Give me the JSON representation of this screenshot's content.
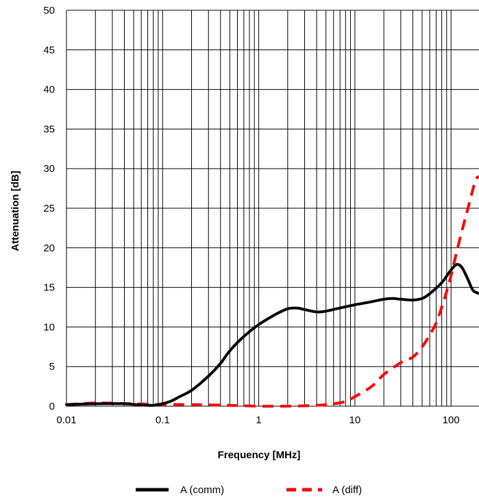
{
  "chart_data": {
    "type": "line",
    "xlabel": "Frequency [MHz]",
    "ylabel": "Attenuation [dB]",
    "x_scale": "log",
    "xlim": [
      0.01,
      200
    ],
    "ylim": [
      0,
      50
    ],
    "x_ticks": [
      "0.01",
      "0.1",
      "1",
      "10",
      "100"
    ],
    "y_ticks": [
      "0",
      "5",
      "10",
      "15",
      "20",
      "25",
      "30",
      "35",
      "40",
      "45",
      "50"
    ],
    "grid": true,
    "legend_position": "bottom",
    "series": [
      {
        "name": "A (comm)",
        "color": "#000000",
        "style": "solid",
        "points": [
          [
            0.01,
            0.2
          ],
          [
            0.02,
            0.3
          ],
          [
            0.04,
            0.3
          ],
          [
            0.07,
            0.1
          ],
          [
            0.09,
            0.2
          ],
          [
            0.12,
            0.6
          ],
          [
            0.15,
            1.2
          ],
          [
            0.2,
            2.0
          ],
          [
            0.3,
            3.8
          ],
          [
            0.4,
            5.4
          ],
          [
            0.5,
            7.0
          ],
          [
            0.7,
            8.8
          ],
          [
            1.0,
            10.3
          ],
          [
            1.5,
            11.6
          ],
          [
            2.0,
            12.3
          ],
          [
            2.5,
            12.4
          ],
          [
            3.0,
            12.2
          ],
          [
            4.0,
            11.9
          ],
          [
            5.0,
            12.0
          ],
          [
            7.0,
            12.4
          ],
          [
            10.0,
            12.8
          ],
          [
            15.0,
            13.2
          ],
          [
            20.0,
            13.5
          ],
          [
            25.0,
            13.6
          ],
          [
            30.0,
            13.5
          ],
          [
            40.0,
            13.4
          ],
          [
            50.0,
            13.6
          ],
          [
            60.0,
            14.2
          ],
          [
            80.0,
            15.6
          ],
          [
            100.0,
            17.2
          ],
          [
            115.0,
            17.9
          ],
          [
            130.0,
            17.5
          ],
          [
            150.0,
            16.0
          ],
          [
            170.0,
            14.6
          ],
          [
            200.0,
            14.2
          ]
        ]
      },
      {
        "name": "A (diff)",
        "color": "#ff0000",
        "style": "dashed",
        "points": [
          [
            0.01,
            0.2
          ],
          [
            0.02,
            0.4
          ],
          [
            0.05,
            0.3
          ],
          [
            0.1,
            0.2
          ],
          [
            0.2,
            0.2
          ],
          [
            0.5,
            0.1
          ],
          [
            1.0,
            0.0
          ],
          [
            2.0,
            0.0
          ],
          [
            4.0,
            0.1
          ],
          [
            6.0,
            0.3
          ],
          [
            8.0,
            0.6
          ],
          [
            10.0,
            1.2
          ],
          [
            15.0,
            2.5
          ],
          [
            20.0,
            4.0
          ],
          [
            30.0,
            5.5
          ],
          [
            40.0,
            6.2
          ],
          [
            50.0,
            7.5
          ],
          [
            60.0,
            9.0
          ],
          [
            70.0,
            10.5
          ],
          [
            80.0,
            12.5
          ],
          [
            90.0,
            14.5
          ],
          [
            100.0,
            16.5
          ],
          [
            120.0,
            20.5
          ],
          [
            150.0,
            25.0
          ],
          [
            180.0,
            28.5
          ],
          [
            200.0,
            29.0
          ]
        ]
      }
    ]
  }
}
